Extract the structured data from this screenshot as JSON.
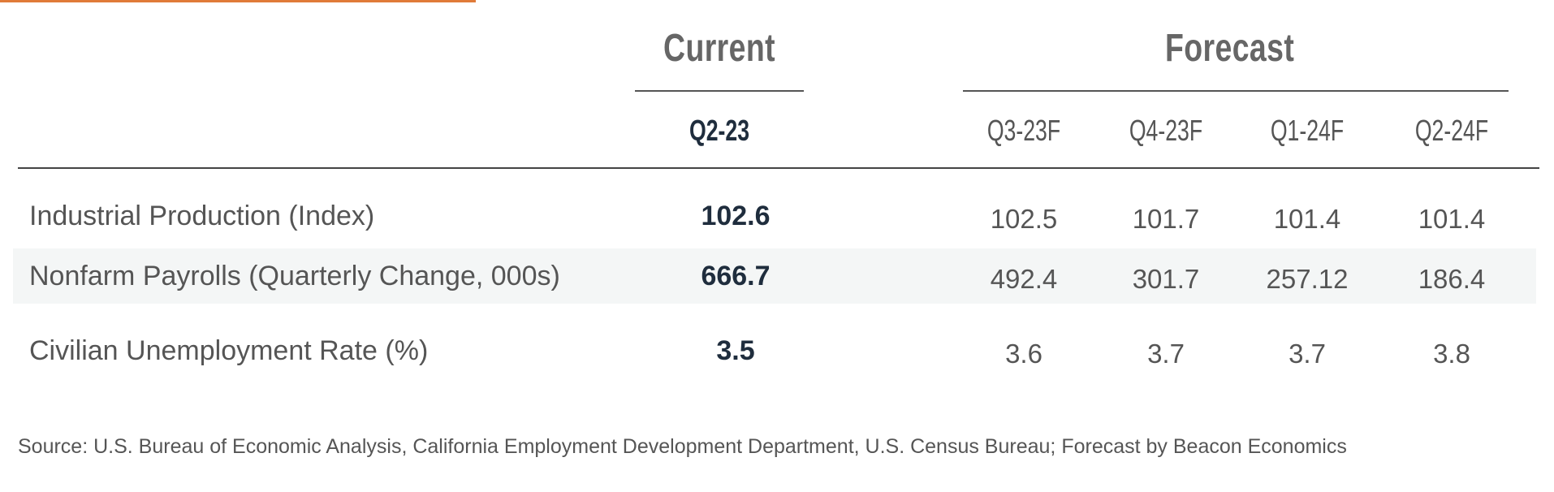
{
  "table": {
    "groups": {
      "current": "Current",
      "forecast": "Forecast"
    },
    "columns": [
      "Q2-23",
      "Q3-23F",
      "Q4-23F",
      "Q1-24F",
      "Q2-24F"
    ],
    "rows": [
      {
        "label": "Industrial Production (Index)",
        "values": [
          "102.6",
          "102.5",
          "101.7",
          "101.4",
          "101.4"
        ]
      },
      {
        "label": "Nonfarm Payrolls (Quarterly Change, 000s)",
        "values": [
          "666.7",
          "492.4",
          "301.7",
          "257.12",
          "186.4"
        ]
      },
      {
        "label": "Civilian Unemployment Rate (%)",
        "values": [
          "3.5",
          "3.6",
          "3.7",
          "3.7",
          "3.8"
        ]
      }
    ]
  },
  "source": "Source: U.S. Bureau of Economic Analysis, California Employment Development Department, U.S. Census Bureau; Forecast by Beacon Economics",
  "colors": {
    "accent": "#e07b39",
    "current_value": "#1f2d3d",
    "text": "#555555",
    "row_shade": "#f4f6f6"
  }
}
